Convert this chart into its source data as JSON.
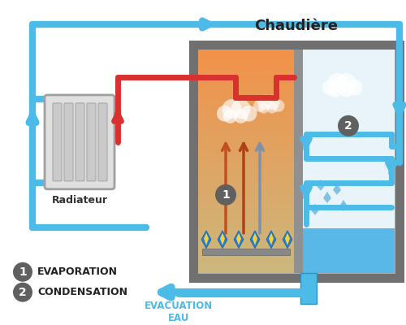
{
  "title": "Chaudière",
  "bg_color": "#ffffff",
  "sky_blue": "#4DBBE8",
  "red": "#D93030",
  "orange_top": "#F0924A",
  "orange_bot": "#F5C080",
  "gray_outer": "#808080",
  "gray_divider": "#909090",
  "gray_light": "#C8C8C8",
  "water_blue": "#5AB8E8",
  "water_light": "#A8D8F0",
  "evac_color": "#4DBBE8",
  "label1": "EVAPORATION",
  "label2": "CONDENSATION",
  "evac_label1": "EVACUATION",
  "evac_label2": "EAU",
  "radiateur_label": "Radiateur",
  "flame_blue": "#3090E0",
  "flame_yellow": "#FFD040",
  "cloud_white": "#FFFFFF",
  "drop_blue": "#70B0D8",
  "badge_gray": "#606060"
}
